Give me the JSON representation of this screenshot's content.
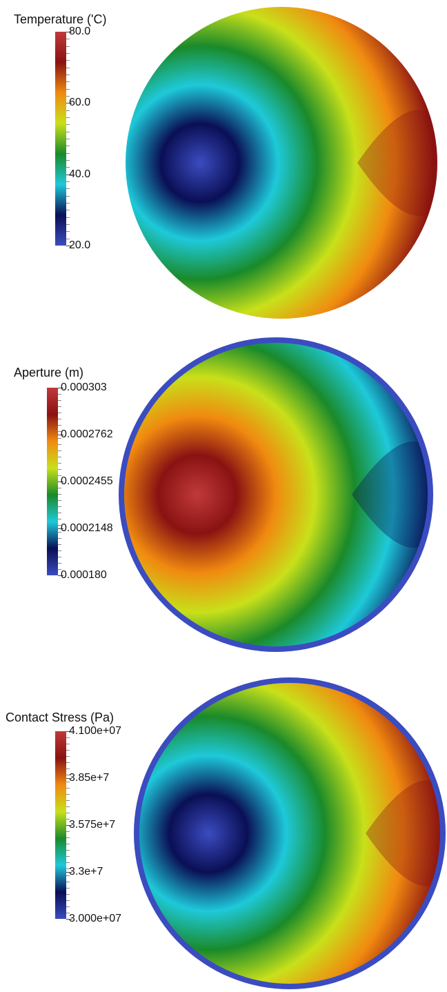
{
  "colormap": [
    "#3b4cc0",
    "#0a0f55",
    "#1ec9d9",
    "#1a8a2a",
    "#c8e01a",
    "#f08a10",
    "#8a1212",
    "#c03a3a"
  ],
  "panels": [
    {
      "id": "temperature",
      "legend_title": "Temperature ('C)",
      "tick_labels": [
        "80.0",
        "60.0",
        "40.0",
        "20.0"
      ],
      "field_style": "cold-center",
      "rim": false
    },
    {
      "id": "aperture",
      "legend_title": "Aperture (m)",
      "tick_labels": [
        "0.000303",
        "0.0002762",
        "0.0002455",
        "0.0002148",
        "0.000180"
      ],
      "field_style": "warm-center",
      "rim": true
    },
    {
      "id": "contact-stress",
      "legend_title": "Contact Stress (Pa)",
      "tick_labels": [
        "4.100e+07",
        "3.85e+7",
        "3.575e+7",
        "3.3e+7",
        "3.000e+07"
      ],
      "field_style": "cold-center",
      "rim": true
    }
  ]
}
